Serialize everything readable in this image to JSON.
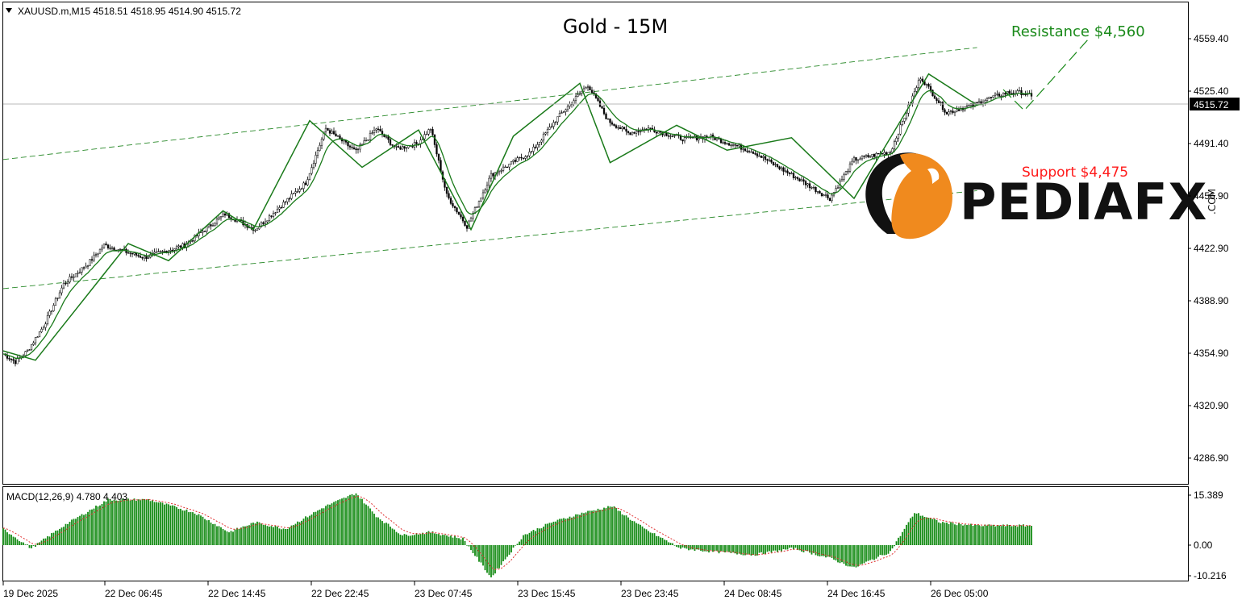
{
  "header": {
    "symbol_line": "XAUUSD.m,M15  4518.51 4518.95 4514.90 4515.72",
    "title": "Gold - 15M"
  },
  "annotations": {
    "resistance": "Resistance  $4,560",
    "support": "Support $4,475"
  },
  "logo": {
    "text": "PEDIAFX",
    "suffix": ".COM"
  },
  "price_axis": {
    "ticks": [
      "4559.40",
      "4525.40",
      "4491.40",
      "4456.90",
      "4422.90",
      "4388.90",
      "4354.90",
      "4320.90",
      "4286.90"
    ],
    "current": "4515.72"
  },
  "macd_panel": {
    "label": "MACD(12,26,9) 4.780 4.403",
    "ticks": [
      "15.389",
      "0.00",
      "-10.216"
    ]
  },
  "time_axis": {
    "ticks": [
      "19 Dec 2025",
      "22 Dec 06:45",
      "22 Dec 14:45",
      "22 Dec 22:45",
      "23 Dec 07:45",
      "23 Dec 15:45",
      "23 Dec 23:45",
      "24 Dec 08:45",
      "24 Dec 16:45",
      "26 Dec 05:00"
    ]
  },
  "colors": {
    "up": "#000000",
    "zigzag": "#1a7a1a",
    "ma": "#1a7a1a",
    "channel": "#2a8a2a",
    "macd_bar": "#138a13",
    "signal": "#e03030",
    "support": "#ff1a1a",
    "resistance": "#1a8a1a",
    "logo_orange": "#f08a1e"
  },
  "chart_data": [
    {
      "type": "candlestick",
      "title": "Gold - 15M",
      "symbol": "XAUUSD.m",
      "timeframe": "M15",
      "last_bar": {
        "open": 4518.51,
        "high": 4518.95,
        "low": 4514.9,
        "close": 4515.72
      },
      "ylim": [
        4266,
        4576
      ],
      "price_path": {
        "bar_index": [
          0,
          6,
          12,
          20,
          30,
          42,
          50,
          70,
          90,
          95,
          110,
          125,
          150,
          160,
          175,
          185,
          195,
          205,
          212,
          220,
          230,
          242,
          262,
          275,
          290,
          300,
          310,
          320,
          338,
          350,
          372,
          382,
          395,
          410,
          422,
          440,
          455,
          468,
          475,
          481,
          488,
          493,
          498,
          505,
          510
        ],
        "price": [
          4350,
          4345,
          4352,
          4368,
          4395,
          4408,
          4420,
          4412,
          4420,
          4425,
          4440,
          4430,
          4460,
          4495,
          4480,
          4495,
          4482,
          4485,
          4495,
          4452,
          4432,
          4465,
          4480,
          4502,
          4523,
          4500,
          4492,
          4495,
          4488,
          4490,
          4480,
          4472,
          4462,
          4450,
          4475,
          4480,
          4528,
          4505,
          4508,
          4510,
          4514,
          4516,
          4518,
          4518,
          4515.72
        ]
      },
      "zigzag": {
        "bar_index": [
          0,
          16,
          62,
          82,
          109,
          124,
          152,
          178,
          206,
          232,
          253,
          286,
          301,
          334,
          359,
          391,
          422,
          459,
          483
        ],
        "price": [
          4352,
          4346,
          4421,
          4410,
          4442,
          4430,
          4500,
          4470,
          4494,
          4430,
          4490,
          4524,
          4473,
          4497,
          4481,
          4489,
          4450,
          4530,
          4510
        ]
      },
      "channel_lines": [
        {
          "name": "upper",
          "from": {
            "bar": 0,
            "price": 4475
          },
          "to": {
            "bar": 483,
            "price": 4547
          }
        },
        {
          "name": "lower",
          "from": {
            "bar": 0,
            "price": 4392
          },
          "to": {
            "bar": 483,
            "price": 4455
          }
        }
      ],
      "annotations": [
        {
          "text": "Resistance  $4,560",
          "price": 4560
        },
        {
          "text": "Support $4,475",
          "price": 4475
        }
      ]
    },
    {
      "type": "bar",
      "title": "MACD(12,26,9) 4.780 4.403",
      "indicator": "MACD",
      "params": [
        12,
        26,
        9
      ],
      "main": 4.78,
      "signal": 4.403,
      "ylim": [
        -10.216,
        15.389
      ],
      "histogram_path": {
        "bar_index": [
          0,
          14,
          30,
          52,
          72,
          95,
          112,
          125,
          140,
          160,
          175,
          185,
          198,
          212,
          228,
          242,
          258,
          272,
          288,
          302,
          318,
          336,
          352,
          372,
          392,
          410,
          422,
          440,
          452,
          465,
          483
        ],
        "value": [
          5,
          -1,
          6,
          14,
          14,
          10,
          4,
          7,
          5,
          12,
          16,
          9,
          3,
          4,
          2,
          -10,
          3,
          7,
          10,
          12,
          5,
          -1,
          -2,
          -3,
          -1,
          -4,
          -7,
          -2,
          10,
          7,
          6
        ]
      }
    }
  ]
}
